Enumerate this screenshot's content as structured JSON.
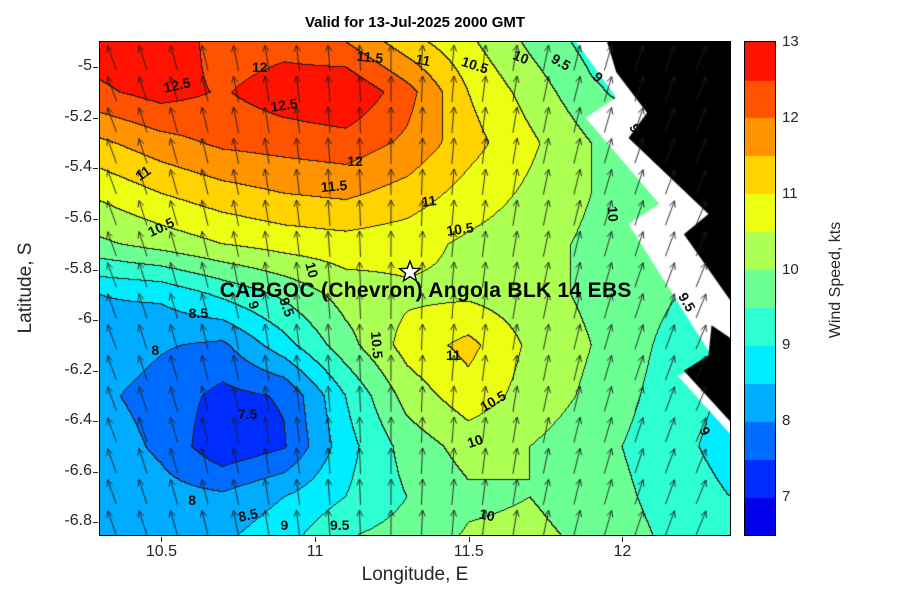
{
  "title": "Valid for 13-Jul-2025 2000 GMT",
  "axes": {
    "xlabel": "Longitude, E",
    "ylabel": "Latitude, S",
    "xlim": [
      10.3,
      12.35
    ],
    "ylim": [
      -6.85,
      -4.9
    ],
    "xticks": [
      {
        "label": "10.5",
        "value": 10.5
      },
      {
        "label": "11",
        "value": 11
      },
      {
        "label": "11.5",
        "value": 11.5
      },
      {
        "label": "12",
        "value": 12
      }
    ],
    "yticks": [
      {
        "label": "-5",
        "value": -5
      },
      {
        "label": "-5.2",
        "value": -5.2
      },
      {
        "label": "-5.4",
        "value": -5.4
      },
      {
        "label": "-5.6",
        "value": -5.6
      },
      {
        "label": "-5.8",
        "value": -5.8
      },
      {
        "label": "-6",
        "value": -6
      },
      {
        "label": "-6.2",
        "value": -6.2
      },
      {
        "label": "-6.4",
        "value": -6.4
      },
      {
        "label": "-6.6",
        "value": -6.6
      },
      {
        "label": "-6.8",
        "value": -6.8
      }
    ]
  },
  "colorbar": {
    "label": "Wind Speed, kts",
    "vmin": 6.5,
    "vmax": 13,
    "band_step": 0.5,
    "ticks": [
      {
        "label": "7",
        "value": 7
      },
      {
        "label": "8",
        "value": 8
      },
      {
        "label": "9",
        "value": 9
      },
      {
        "label": "10",
        "value": 10
      },
      {
        "label": "11",
        "value": 11
      },
      {
        "label": "12",
        "value": 12
      },
      {
        "label": "13",
        "value": 13
      }
    ]
  },
  "site": {
    "label": "CABGOC (Chevron)  Angola BLK 14  EBS",
    "lon": 11.31,
    "lat": -5.81,
    "label_lon": 11.36,
    "label_lat": -5.885,
    "marker": "star"
  },
  "chart_data": {
    "type": "contour",
    "title": "Valid for 13-Jul-2025 2000 GMT",
    "xlabel": "Longitude, E",
    "ylabel": "Latitude, S",
    "units": "kts",
    "colorbar_label": "Wind Speed, kts",
    "contour_interval": 0.5,
    "value_range": [
      6.5,
      13
    ],
    "grid": {
      "lon": [
        10.3,
        10.5,
        10.7,
        10.9,
        11.1,
        11.3,
        11.5,
        11.7,
        11.9,
        12.1,
        12.35
      ],
      "lat": [
        -4.9,
        -5.1,
        -5.3,
        -5.5,
        -5.7,
        -5.9,
        -6.1,
        -6.3,
        -6.5,
        -6.7,
        -6.85
      ],
      "values": [
        [
          12.8,
          13.0,
          12.2,
          12.3,
          12.0,
          11.2,
          10.6,
          9.9,
          9.3,
          9.0,
          8.8
        ],
        [
          12.4,
          12.7,
          12.45,
          12.8,
          13.0,
          12.2,
          11.0,
          10.3,
          9.6,
          9.2,
          8.9
        ],
        [
          11.4,
          11.8,
          12.1,
          12.2,
          12.3,
          11.9,
          11.2,
          10.6,
          10.0,
          9.5,
          9.2
        ],
        [
          10.6,
          11.0,
          11.3,
          11.5,
          11.6,
          11.3,
          10.8,
          10.4,
          10.0,
          9.6,
          9.4
        ],
        [
          9.9,
          10.2,
          10.5,
          10.7,
          10.8,
          10.7,
          10.4,
          10.2,
          9.9,
          9.7,
          9.5
        ],
        [
          8.5,
          8.6,
          9.1,
          9.6,
          10.2,
          10.4,
          10.4,
          10.2,
          9.9,
          9.6,
          9.3
        ],
        [
          8.3,
          8.05,
          7.9,
          8.8,
          9.8,
          10.7,
          11.15,
          10.4,
          10.0,
          9.5,
          9.0
        ],
        [
          8.1,
          7.8,
          7.35,
          7.55,
          9.0,
          10.2,
          10.8,
          10.3,
          9.9,
          9.4,
          8.9
        ],
        [
          8.3,
          7.9,
          7.1,
          7.45,
          8.8,
          9.7,
          10.2,
          10.0,
          9.7,
          9.3,
          8.8
        ],
        [
          8.4,
          8.2,
          8.1,
          8.5,
          9.0,
          9.5,
          9.9,
          10.0,
          9.8,
          9.4,
          9.0
        ],
        [
          8.5,
          8.3,
          8.4,
          8.8,
          9.45,
          9.7,
          10.05,
          10.1,
          9.9,
          9.5,
          9.1
        ]
      ]
    },
    "contour_labels": [
      {
        "t": "12.5",
        "lon": 10.55,
        "lat": -5.07,
        "r": -12
      },
      {
        "t": "12",
        "lon": 10.82,
        "lat": -5.0,
        "r": 0
      },
      {
        "t": "12.5",
        "lon": 10.9,
        "lat": -5.15,
        "r": -8
      },
      {
        "t": "11.5",
        "lon": 11.18,
        "lat": -4.96,
        "r": 6
      },
      {
        "t": "11",
        "lon": 11.35,
        "lat": -4.97,
        "r": 12
      },
      {
        "t": "10.5",
        "lon": 11.52,
        "lat": -4.99,
        "r": 18
      },
      {
        "t": "10",
        "lon": 11.67,
        "lat": -4.96,
        "r": 22
      },
      {
        "t": "9.5",
        "lon": 11.8,
        "lat": -4.98,
        "r": 30
      },
      {
        "t": "9",
        "lon": 11.92,
        "lat": -5.04,
        "r": 45
      },
      {
        "t": "9",
        "lon": 12.04,
        "lat": -5.24,
        "r": 65
      },
      {
        "t": "11",
        "lon": 10.44,
        "lat": -5.42,
        "r": -35
      },
      {
        "t": "10.5",
        "lon": 10.5,
        "lat": -5.63,
        "r": -25
      },
      {
        "t": "12",
        "lon": 11.13,
        "lat": -5.37,
        "r": 0
      },
      {
        "t": "11.5",
        "lon": 11.06,
        "lat": -5.47,
        "r": -5
      },
      {
        "t": "11",
        "lon": 11.37,
        "lat": -5.53,
        "r": -8
      },
      {
        "t": "10.5",
        "lon": 11.47,
        "lat": -5.64,
        "r": -8
      },
      {
        "t": "10",
        "lon": 11.97,
        "lat": -5.58,
        "r": 85
      },
      {
        "t": "9.5",
        "lon": 12.21,
        "lat": -5.93,
        "r": 60
      },
      {
        "t": "8.5",
        "lon": 10.62,
        "lat": -5.97,
        "r": 0
      },
      {
        "t": "9",
        "lon": 10.8,
        "lat": -5.94,
        "r": 75
      },
      {
        "t": "9.5",
        "lon": 10.91,
        "lat": -5.95,
        "r": 70
      },
      {
        "t": "10",
        "lon": 10.99,
        "lat": -5.8,
        "r": 75
      },
      {
        "t": "8",
        "lon": 10.48,
        "lat": -6.12,
        "r": 0
      },
      {
        "t": "10.5",
        "lon": 11.2,
        "lat": -6.1,
        "r": 85
      },
      {
        "t": "11",
        "lon": 11.45,
        "lat": -6.14,
        "r": 0
      },
      {
        "t": "7.5",
        "lon": 10.78,
        "lat": -6.37,
        "r": 0
      },
      {
        "t": "10.5",
        "lon": 11.58,
        "lat": -6.32,
        "r": -30
      },
      {
        "t": "10",
        "lon": 11.52,
        "lat": -6.48,
        "r": -18
      },
      {
        "t": "8",
        "lon": 10.6,
        "lat": -6.71,
        "r": 0
      },
      {
        "t": "8.5",
        "lon": 10.78,
        "lat": -6.77,
        "r": -12
      },
      {
        "t": "9",
        "lon": 10.9,
        "lat": -6.81,
        "r": 0
      },
      {
        "t": "9.5",
        "lon": 11.08,
        "lat": -6.81,
        "r": 0
      },
      {
        "t": "10",
        "lon": 11.56,
        "lat": -6.77,
        "r": 12
      },
      {
        "t": "9",
        "lon": 12.27,
        "lat": -6.44,
        "r": 65
      }
    ],
    "land": {
      "white": [
        [
          [
            11.85,
            -4.9
          ],
          [
            12.35,
            -4.9
          ],
          [
            12.35,
            -6.45
          ],
          [
            12.18,
            -6.22
          ],
          [
            12.3,
            -6.16
          ],
          [
            12.02,
            -5.62
          ],
          [
            12.12,
            -5.54
          ],
          [
            11.88,
            -5.2
          ],
          [
            11.98,
            -5.12
          ]
        ]
      ],
      "black": [
        [
          [
            11.95,
            -4.9
          ],
          [
            12.35,
            -4.9
          ],
          [
            12.35,
            -5.92
          ],
          [
            12.2,
            -5.66
          ],
          [
            12.28,
            -5.58
          ],
          [
            12.02,
            -5.28
          ],
          [
            12.08,
            -5.18
          ],
          [
            11.98,
            -5.02
          ]
        ],
        [
          [
            12.29,
            -6.02
          ],
          [
            12.35,
            -6.07
          ],
          [
            12.35,
            -6.4
          ],
          [
            12.2,
            -6.2
          ],
          [
            12.28,
            -6.14
          ]
        ]
      ]
    },
    "quiver": {
      "description": "wind vectors pointing roughly north; tilted NNW on west side, NNE on east side",
      "u_left": -0.38,
      "u_right": 0.45,
      "v": 1
    }
  }
}
